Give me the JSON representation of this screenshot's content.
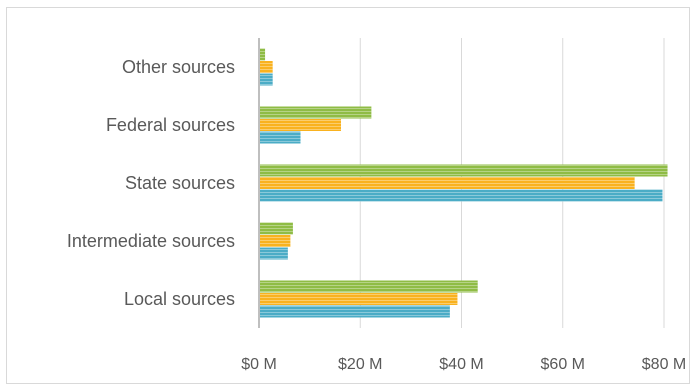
{
  "chart_data": {
    "type": "bar",
    "orientation": "horizontal",
    "categories": [
      "Local sources",
      "Intermediate sources",
      "State sources",
      "Federal sources",
      "Other sources"
    ],
    "series": [
      {
        "values": [
          37.5,
          5.5,
          79.5,
          8,
          2.5
        ],
        "color": "#4bacc6"
      },
      {
        "values": [
          39,
          6,
          74,
          16,
          2.5
        ],
        "color": "#f9b21f"
      },
      {
        "values": [
          43,
          6.5,
          80.5,
          22,
          1
        ],
        "color": "#8fbc45"
      }
    ],
    "xlim": [
      0,
      80
    ],
    "x_ticks": [
      {
        "value": 0,
        "label": "$0 M"
      },
      {
        "value": 20,
        "label": "$20 M"
      },
      {
        "value": 40,
        "label": "$40 M"
      },
      {
        "value": 60,
        "label": "$60 M"
      },
      {
        "value": 80,
        "label": "$80 M"
      }
    ],
    "grid": true,
    "legend": "none",
    "title": "",
    "xlabel": "",
    "ylabel": ""
  }
}
